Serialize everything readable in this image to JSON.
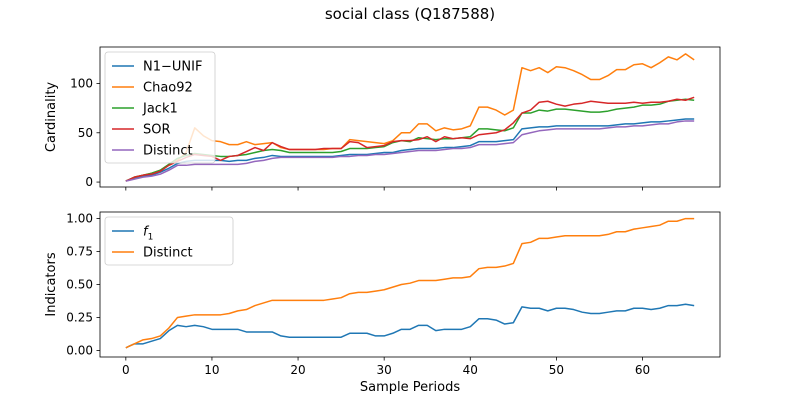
{
  "title": "social class (Q187588)",
  "colors": {
    "N1-UNIF": "#1f77b4",
    "Chao92": "#ff7f0e",
    "Jack1": "#2ca02c",
    "SOR": "#d62728",
    "Distinct": "#9467bd",
    "f1": "#1f77b4",
    "Distinct2": "#ff7f0e"
  },
  "chart_data": [
    {
      "type": "line",
      "xlabel": "",
      "ylabel": "Cardinality",
      "xlim": [
        -3,
        69
      ],
      "ylim": [
        -5,
        137
      ],
      "xticks": [
        0,
        10,
        20,
        30,
        40,
        50,
        60
      ],
      "yticks": [
        0,
        50,
        100
      ],
      "legend": "upper-left",
      "x": [
        0,
        1,
        2,
        3,
        4,
        5,
        6,
        7,
        8,
        9,
        10,
        11,
        12,
        13,
        14,
        15,
        16,
        17,
        18,
        19,
        20,
        21,
        22,
        23,
        24,
        25,
        26,
        27,
        28,
        29,
        30,
        31,
        32,
        33,
        34,
        35,
        36,
        37,
        38,
        39,
        40,
        41,
        42,
        43,
        44,
        45,
        46,
        47,
        48,
        49,
        50,
        51,
        52,
        53,
        54,
        55,
        56,
        57,
        58,
        59,
        60,
        61,
        62,
        63,
        64,
        65,
        66
      ],
      "series": [
        {
          "name": "N1−UNIF",
          "color_key": "N1-UNIF",
          "values": [
            1,
            4,
            6,
            7,
            10,
            14,
            19,
            21,
            22,
            22,
            22,
            22,
            21,
            22,
            22,
            24,
            25,
            27,
            26,
            26,
            26,
            26,
            26,
            26,
            26,
            27,
            28,
            28,
            28,
            29,
            30,
            30,
            32,
            33,
            34,
            34,
            34,
            35,
            35,
            36,
            37,
            41,
            41,
            41,
            42,
            43,
            54,
            55,
            56,
            56,
            57,
            57,
            57,
            57,
            57,
            57,
            57,
            58,
            59,
            59,
            60,
            61,
            61,
            62,
            63,
            64,
            64
          ]
        },
        {
          "name": "Chao92",
          "color_key": "Chao92",
          "values": [
            1,
            5,
            7,
            9,
            12,
            18,
            22,
            30,
            55,
            47,
            42,
            41,
            38,
            38,
            41,
            38,
            39,
            40,
            35,
            33,
            33,
            33,
            33,
            33,
            34,
            34,
            43,
            42,
            41,
            40,
            39,
            42,
            50,
            50,
            59,
            59,
            52,
            55,
            53,
            54,
            57,
            76,
            76,
            73,
            68,
            73,
            116,
            113,
            116,
            111,
            117,
            116,
            113,
            109,
            104,
            104,
            108,
            114,
            114,
            119,
            120,
            116,
            121,
            127,
            124,
            130,
            124
          ]
        },
        {
          "name": "Jack1",
          "color_key": "Jack1",
          "values": [
            1,
            5,
            7,
            9,
            12,
            18,
            24,
            27,
            29,
            28,
            27,
            26,
            26,
            27,
            28,
            30,
            32,
            33,
            32,
            30,
            30,
            30,
            30,
            30,
            30,
            31,
            34,
            34,
            34,
            35,
            36,
            40,
            42,
            41,
            45,
            44,
            43,
            44,
            44,
            45,
            46,
            54,
            54,
            53,
            52,
            55,
            70,
            70,
            73,
            72,
            74,
            74,
            73,
            72,
            71,
            71,
            72,
            74,
            75,
            76,
            78,
            78,
            79,
            82,
            83,
            84,
            83
          ]
        },
        {
          "name": "SOR",
          "color_key": "SOR",
          "values": [
            1,
            5,
            7,
            8,
            11,
            17,
            21,
            25,
            28,
            27,
            26,
            22,
            26,
            27,
            31,
            35,
            32,
            40,
            36,
            33,
            33,
            33,
            33,
            34,
            34,
            34,
            41,
            40,
            35,
            36,
            37,
            41,
            42,
            42,
            43,
            46,
            41,
            46,
            44,
            45,
            44,
            48,
            49,
            50,
            53,
            60,
            70,
            73,
            81,
            82,
            79,
            77,
            79,
            80,
            82,
            81,
            80,
            80,
            80,
            81,
            80,
            81,
            81,
            82,
            84,
            83,
            86
          ]
        },
        {
          "name": "Distinct",
          "color_key": "Distinct",
          "values": [
            1,
            3,
            5,
            6,
            8,
            12,
            17,
            17,
            18,
            18,
            18,
            18,
            18,
            18,
            19,
            21,
            22,
            24,
            25,
            25,
            25,
            25,
            25,
            25,
            25,
            26,
            26,
            27,
            27,
            28,
            28,
            29,
            30,
            31,
            32,
            32,
            32,
            33,
            34,
            34,
            35,
            38,
            38,
            38,
            39,
            40,
            48,
            50,
            52,
            53,
            54,
            54,
            54,
            54,
            54,
            54,
            55,
            56,
            56,
            57,
            57,
            58,
            59,
            59,
            61,
            62,
            62
          ]
        }
      ]
    },
    {
      "type": "line",
      "xlabel": "Sample Periods",
      "ylabel": "Indicators",
      "xlim": [
        -3,
        69
      ],
      "ylim": [
        -0.05,
        1.05
      ],
      "xticks": [
        0,
        10,
        20,
        30,
        40,
        50,
        60
      ],
      "yticks": [
        0.0,
        0.25,
        0.5,
        0.75,
        1.0
      ],
      "ytick_labels": [
        "0.00",
        "0.25",
        "0.50",
        "0.75",
        "1.00"
      ],
      "legend": "upper-left",
      "x": [
        0,
        1,
        2,
        3,
        4,
        5,
        6,
        7,
        8,
        9,
        10,
        11,
        12,
        13,
        14,
        15,
        16,
        17,
        18,
        19,
        20,
        21,
        22,
        23,
        24,
        25,
        26,
        27,
        28,
        29,
        30,
        31,
        32,
        33,
        34,
        35,
        36,
        37,
        38,
        39,
        40,
        41,
        42,
        43,
        44,
        45,
        46,
        47,
        48,
        49,
        50,
        51,
        52,
        53,
        54,
        55,
        56,
        57,
        58,
        59,
        60,
        61,
        62,
        63,
        64,
        65,
        66
      ],
      "series": [
        {
          "name": "f",
          "name_sub": "1",
          "color_key": "f1",
          "values": [
            0.02,
            0.05,
            0.05,
            0.07,
            0.09,
            0.15,
            0.19,
            0.18,
            0.19,
            0.18,
            0.16,
            0.16,
            0.16,
            0.16,
            0.14,
            0.14,
            0.14,
            0.14,
            0.11,
            0.1,
            0.1,
            0.1,
            0.1,
            0.1,
            0.1,
            0.1,
            0.13,
            0.13,
            0.13,
            0.11,
            0.11,
            0.13,
            0.16,
            0.16,
            0.19,
            0.19,
            0.15,
            0.16,
            0.16,
            0.16,
            0.18,
            0.24,
            0.24,
            0.23,
            0.2,
            0.21,
            0.33,
            0.32,
            0.32,
            0.3,
            0.32,
            0.32,
            0.31,
            0.29,
            0.28,
            0.28,
            0.29,
            0.3,
            0.3,
            0.32,
            0.32,
            0.31,
            0.32,
            0.34,
            0.34,
            0.35,
            0.34
          ]
        },
        {
          "name": "Distinct",
          "color_key": "Distinct2",
          "values": [
            0.02,
            0.05,
            0.08,
            0.09,
            0.11,
            0.17,
            0.25,
            0.26,
            0.27,
            0.27,
            0.27,
            0.27,
            0.28,
            0.3,
            0.31,
            0.34,
            0.36,
            0.38,
            0.38,
            0.38,
            0.38,
            0.38,
            0.38,
            0.38,
            0.39,
            0.4,
            0.43,
            0.44,
            0.44,
            0.45,
            0.46,
            0.48,
            0.5,
            0.51,
            0.53,
            0.53,
            0.53,
            0.54,
            0.55,
            0.55,
            0.56,
            0.62,
            0.63,
            0.63,
            0.64,
            0.66,
            0.81,
            0.82,
            0.85,
            0.85,
            0.86,
            0.87,
            0.87,
            0.87,
            0.87,
            0.87,
            0.88,
            0.9,
            0.9,
            0.92,
            0.93,
            0.94,
            0.95,
            0.98,
            0.98,
            1.0,
            1.0
          ]
        }
      ]
    }
  ]
}
